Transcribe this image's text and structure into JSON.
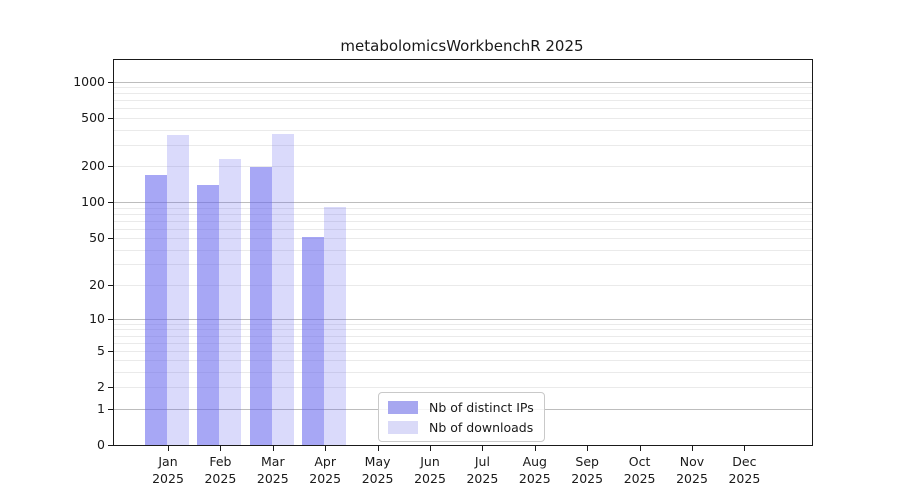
{
  "chart_data": {
    "type": "bar",
    "title": "metabolomicsWorkbenchR 2025",
    "year": "2025",
    "categories": [
      "Jan",
      "Feb",
      "Mar",
      "Apr",
      "May",
      "Jun",
      "Jul",
      "Aug",
      "Sep",
      "Oct",
      "Nov",
      "Dec"
    ],
    "series": [
      {
        "name": "Nb of distinct IPs",
        "color": "#a7a7f0",
        "fill_rgba": "rgba(102,102,238,0.575)",
        "values": [
          170,
          140,
          195,
          51,
          0,
          0,
          0,
          0,
          0,
          0,
          0,
          0
        ]
      },
      {
        "name": "Nb of downloads",
        "color": "#dadaf8",
        "fill_rgba": "rgba(102,102,238,0.24)",
        "values": [
          360,
          230,
          370,
          92,
          0,
          0,
          0,
          0,
          0,
          0,
          0,
          0
        ]
      }
    ],
    "y_ticks": [
      0,
      1,
      2,
      5,
      10,
      20,
      50,
      100,
      200,
      500,
      1000
    ],
    "y_scale": "log1p",
    "ylim": [
      0,
      1500
    ],
    "grid": true,
    "legend_position": "bottom-center-inside"
  },
  "colors": {
    "grid_major": "#bdbdbd",
    "grid_minor": "#eaeaea",
    "axis": "#1a1a1a"
  }
}
